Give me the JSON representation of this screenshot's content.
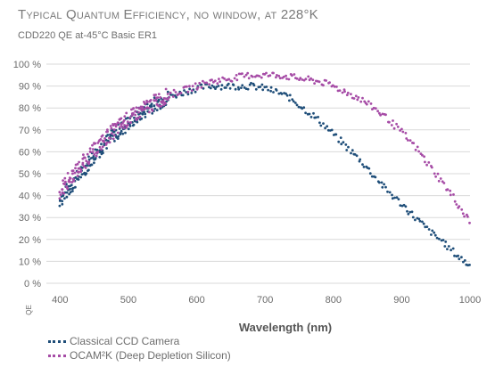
{
  "chart_data": {
    "type": "scatter",
    "title": "Typical Quantum Efficiency, no window, at 228°K",
    "subtitle": "CDD220 QE at-45°C Basic ER1",
    "xlabel": "Wavelength (nm)",
    "ylabel": "QE",
    "xlim": [
      380,
      1000
    ],
    "ylim": [
      0,
      100
    ],
    "x_ticks": [
      "400",
      "500",
      "600",
      "700",
      "800",
      "900",
      "1000"
    ],
    "y_ticks": [
      "0 %",
      "10 %",
      "20 %",
      "30 %",
      "40 %",
      "50 %",
      "60 %",
      "70 %",
      "80 %",
      "90 %",
      "100 %"
    ],
    "grid": "horizontal",
    "series": [
      {
        "name": "Classical CCD Camera",
        "color": "#1f4e79",
        "x": [
          400,
          420,
          440,
          460,
          480,
          500,
          520,
          540,
          560,
          580,
          600,
          620,
          640,
          660,
          680,
          700,
          720,
          740,
          760,
          780,
          800,
          820,
          840,
          860,
          880,
          900,
          920,
          940,
          960,
          980,
          1000
        ],
        "y": [
          38,
          46,
          54,
          62,
          68,
          73,
          78,
          82,
          85,
          87,
          89,
          90,
          90,
          90,
          90,
          89,
          87,
          84,
          79,
          74,
          68,
          62,
          56,
          49,
          42,
          36,
          30,
          24,
          19,
          13,
          8
        ]
      },
      {
        "name": "OCAM²K (Deep Depletion Silicon)",
        "color": "#a64ca6",
        "x": [
          400,
          420,
          440,
          460,
          480,
          500,
          520,
          540,
          560,
          580,
          600,
          620,
          640,
          660,
          680,
          700,
          720,
          740,
          760,
          780,
          800,
          820,
          840,
          860,
          880,
          900,
          920,
          940,
          960,
          980,
          1000
        ],
        "y": [
          42,
          50,
          57,
          64,
          70,
          75,
          79,
          83,
          86,
          88,
          90,
          92,
          93,
          94,
          95,
          95,
          95,
          94,
          93,
          92,
          90,
          87,
          84,
          80,
          75,
          69,
          62,
          54,
          46,
          37,
          28
        ]
      }
    ],
    "legend_position": "bottom-left"
  }
}
